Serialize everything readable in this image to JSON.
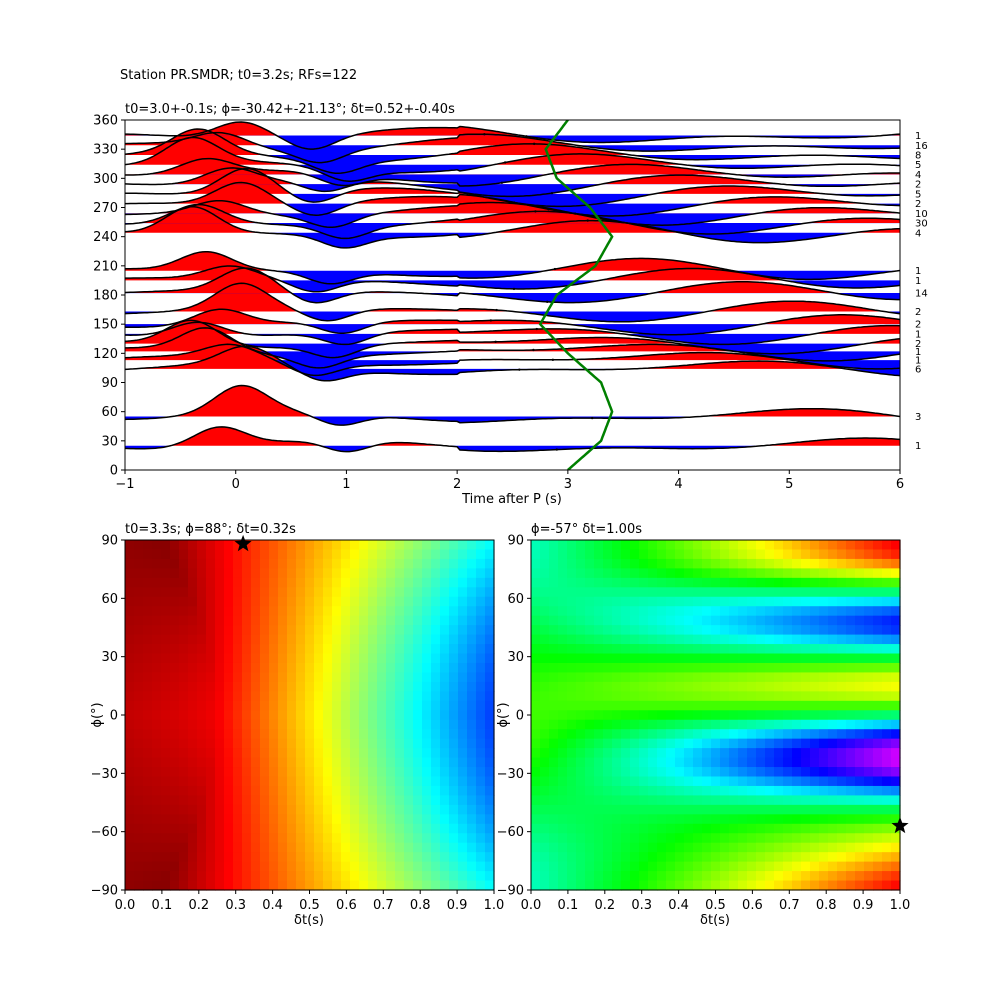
{
  "suptitle": "Station PR.SMDR; t0=3.2s; RFs=122",
  "chart_data": [
    {
      "type": "line",
      "title": "t0=3.0+-0.1s; ϕ=-30.42+-21.13°; δt=0.52+-0.40s",
      "xlabel": "Time after P (s)",
      "ylabel": "",
      "xlim": [
        -1,
        6
      ],
      "ylim": [
        0,
        360
      ],
      "x_ticks": [
        "−1",
        "0",
        "1",
        "2",
        "3",
        "4",
        "5",
        "6"
      ],
      "y_ticks": [
        "0",
        "30",
        "60",
        "90",
        "120",
        "150",
        "180",
        "210",
        "240",
        "270",
        "300",
        "330",
        "360"
      ],
      "fill_colors": {
        "positive": "#ff0000",
        "negative": "#0000ff"
      },
      "trace_color": "#000000",
      "t0_curve_color": "#008000",
      "t0_curve": {
        "baz": [
          0,
          30,
          60,
          90,
          120,
          150,
          180,
          210,
          240,
          270,
          300,
          330,
          360
        ],
        "time": [
          3.0,
          3.3,
          3.4,
          3.3,
          3.0,
          2.75,
          2.9,
          3.25,
          3.4,
          3.2,
          2.9,
          2.8,
          3.0
        ]
      },
      "traces": [
        {
          "baz": 25,
          "count": "1"
        },
        {
          "baz": 55,
          "count": "3"
        },
        {
          "baz": 104,
          "count": "6"
        },
        {
          "baz": 113,
          "count": "1"
        },
        {
          "baz": 122,
          "count": "1"
        },
        {
          "baz": 130,
          "count": "2"
        },
        {
          "baz": 140,
          "count": "1"
        },
        {
          "baz": 150,
          "count": "2"
        },
        {
          "baz": 163,
          "count": "2"
        },
        {
          "baz": 182,
          "count": "14"
        },
        {
          "baz": 195,
          "count": "1"
        },
        {
          "baz": 205,
          "count": "1"
        },
        {
          "baz": 244,
          "count": "4"
        },
        {
          "baz": 254,
          "count": "30"
        },
        {
          "baz": 264,
          "count": "10"
        },
        {
          "baz": 274,
          "count": "2"
        },
        {
          "baz": 284,
          "count": "5"
        },
        {
          "baz": 294,
          "count": "2"
        },
        {
          "baz": 304,
          "count": "4"
        },
        {
          "baz": 314,
          "count": "5"
        },
        {
          "baz": 324,
          "count": "8"
        },
        {
          "baz": 334,
          "count": "16"
        },
        {
          "baz": 344,
          "count": "1"
        }
      ]
    },
    {
      "type": "heatmap",
      "title": "t0=3.3s; ϕ=88°; δt=0.32s",
      "xlabel": "δt(s)",
      "ylabel": "ϕ(°)",
      "xlim": [
        0,
        1
      ],
      "ylim": [
        -90,
        90
      ],
      "x_ticks": [
        "0.0",
        "0.1",
        "0.2",
        "0.3",
        "0.4",
        "0.5",
        "0.6",
        "0.7",
        "0.8",
        "0.9",
        "1.0"
      ],
      "y_ticks": [
        "−90",
        "−60",
        "−30",
        "0",
        "30",
        "60",
        "90"
      ],
      "colormap": "jet",
      "best": {
        "dt": 0.32,
        "phi": 88
      }
    },
    {
      "type": "heatmap",
      "title": "ϕ=-57° δt=1.00s",
      "xlabel": "δt(s)",
      "ylabel": "ϕ(°)",
      "xlim": [
        0,
        1
      ],
      "ylim": [
        -90,
        90
      ],
      "x_ticks": [
        "0.0",
        "0.1",
        "0.2",
        "0.3",
        "0.4",
        "0.5",
        "0.6",
        "0.7",
        "0.8",
        "0.9",
        "1.0"
      ],
      "y_ticks": [
        "−90",
        "−60",
        "−30",
        "0",
        "30",
        "60",
        "90"
      ],
      "colormap": "gist_rainbow",
      "best": {
        "dt": 1.0,
        "phi": -57
      }
    }
  ]
}
